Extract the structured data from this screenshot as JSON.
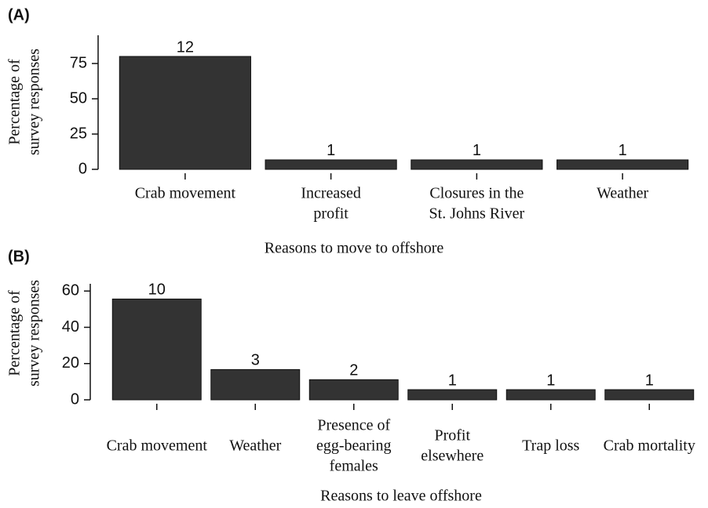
{
  "chart_data": [
    {
      "type": "bar",
      "panel": "(A)",
      "ylabel": [
        "Percentage of",
        "survey responses"
      ],
      "xlabel": "Reasons to move to offshore",
      "categories": [
        [
          "Crab movement"
        ],
        [
          "Increased",
          "profit"
        ],
        [
          "Closures in the",
          "St. Johns River"
        ],
        [
          "Weather"
        ]
      ],
      "values": [
        80,
        6.7,
        6.7,
        6.7
      ],
      "counts": [
        12,
        1,
        1,
        1
      ],
      "color": "#333333",
      "ylim": [
        0,
        95
      ],
      "yticks": [
        0,
        25,
        50,
        75
      ]
    },
    {
      "type": "bar",
      "panel": "(B)",
      "ylabel": [
        "Percentage of",
        "survey responses"
      ],
      "xlabel": "Reasons to leave offshore",
      "categories": [
        [
          "Crab movement"
        ],
        [
          "Weather"
        ],
        [
          "Presence of",
          "egg-bearing",
          "females"
        ],
        [
          "Profit",
          "elsewhere"
        ],
        [
          "Trap loss"
        ],
        [
          "Crab mortality"
        ]
      ],
      "values": [
        55.6,
        16.7,
        11.1,
        5.6,
        5.6,
        5.6
      ],
      "counts": [
        10,
        3,
        2,
        1,
        1,
        1
      ],
      "color": "#333333",
      "ylim": [
        0,
        64
      ],
      "yticks": [
        0,
        20,
        40,
        60
      ]
    }
  ]
}
